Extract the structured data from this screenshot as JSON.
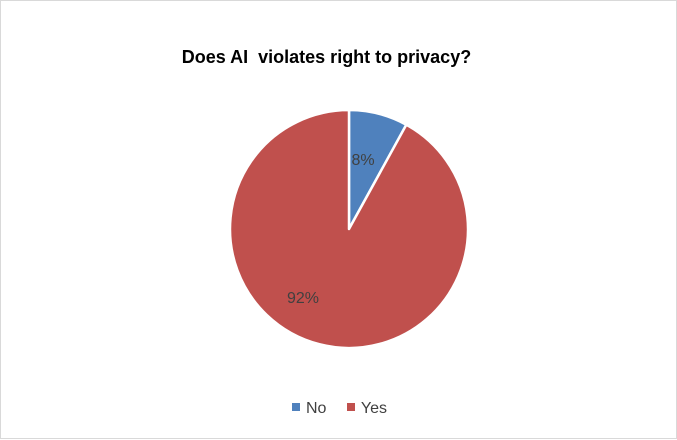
{
  "chart_data": {
    "type": "pie",
    "title": "Does AI  violates right to privacy?",
    "categories": [
      "No",
      "Yes"
    ],
    "values": [
      8,
      92
    ],
    "data_labels": [
      "8%",
      "92%"
    ],
    "colors": [
      "#4f81bd",
      "#c0504d"
    ],
    "legend_position": "bottom"
  }
}
